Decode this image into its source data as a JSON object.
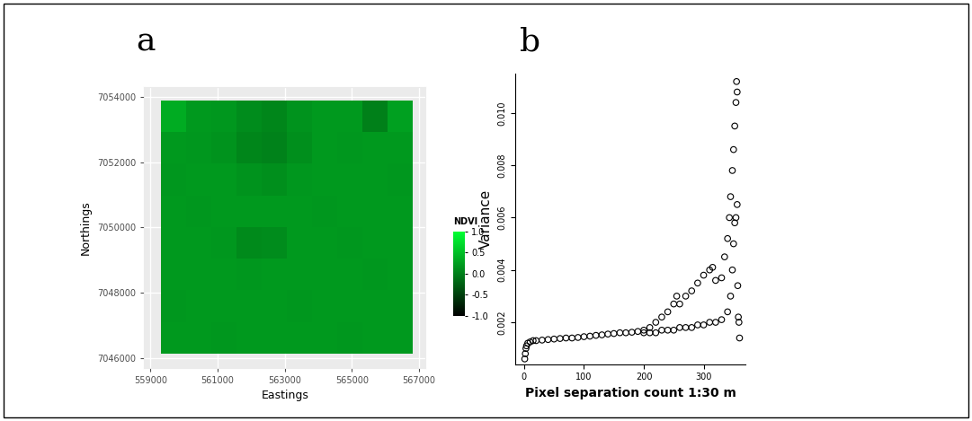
{
  "chart_data": [
    {
      "type": "heatmap",
      "title": "a",
      "x_label": "Eastings",
      "y_label": "Northings",
      "xlim": [
        558800,
        567200
      ],
      "ylim": [
        7045700,
        7054300
      ],
      "xticks": [
        559000,
        561000,
        563000,
        565000,
        567000
      ],
      "yticks": [
        7046000,
        7048000,
        7050000,
        7052000,
        7054000
      ],
      "grid": true,
      "x_extent": [
        559300,
        566800
      ],
      "y_extent": [
        7046150,
        7053900
      ],
      "cells": [
        [
          0.35,
          0.2,
          0.18,
          0.1,
          0.05,
          0.15,
          0.2,
          0.2,
          0.0,
          0.25
        ],
        [
          0.2,
          0.18,
          0.15,
          0.05,
          0.02,
          0.12,
          0.2,
          0.18,
          0.2,
          0.2
        ],
        [
          0.18,
          0.2,
          0.2,
          0.15,
          0.12,
          0.18,
          0.2,
          0.2,
          0.2,
          0.18
        ],
        [
          0.2,
          0.18,
          0.2,
          0.2,
          0.2,
          0.2,
          0.18,
          0.2,
          0.2,
          0.2
        ],
        [
          0.2,
          0.2,
          0.18,
          0.08,
          0.1,
          0.2,
          0.2,
          0.18,
          0.2,
          0.2
        ],
        [
          0.2,
          0.2,
          0.2,
          0.18,
          0.2,
          0.2,
          0.2,
          0.2,
          0.18,
          0.2
        ],
        [
          0.18,
          0.2,
          0.2,
          0.2,
          0.2,
          0.18,
          0.2,
          0.2,
          0.2,
          0.2
        ],
        [
          0.2,
          0.2,
          0.18,
          0.2,
          0.2,
          0.2,
          0.2,
          0.18,
          0.2,
          0.2
        ]
      ],
      "colorbar": {
        "label": "NDVI",
        "range": [
          -1.0,
          1.0
        ],
        "colors": [
          "#000000",
          "#00ff33"
        ],
        "ticks": [
          {
            "value": -1.0,
            "label": "-1.0"
          },
          {
            "value": -0.5,
            "label": "-0.5"
          },
          {
            "value": 0.0,
            "label": "0.0"
          },
          {
            "value": 0.5,
            "label": "0.5"
          },
          {
            "value": 1.0,
            "label": "1.0"
          }
        ]
      }
    },
    {
      "type": "scatter",
      "title": "b",
      "x_label": "Pixel separation count 1:30 m",
      "y_label": "Variance",
      "xlim": [
        -15,
        370
      ],
      "ylim": [
        0.0004,
        0.0115
      ],
      "xticks": [
        0,
        100,
        200,
        300
      ],
      "yticks": [
        {
          "value": 0.002,
          "label": "0.002"
        },
        {
          "value": 0.004,
          "label": "0.004"
        },
        {
          "value": 0.006,
          "label": "0.006"
        },
        {
          "value": 0.008,
          "label": "0.008"
        },
        {
          "value": 0.01,
          "label": "0.010"
        }
      ],
      "grid": false,
      "color": "#000000",
      "marker": "open_circle",
      "x": [
        1,
        2,
        3,
        4,
        6,
        10,
        15,
        20,
        30,
        40,
        50,
        60,
        70,
        80,
        90,
        100,
        110,
        120,
        130,
        140,
        150,
        160,
        170,
        180,
        190,
        200,
        200,
        210,
        210,
        220,
        220,
        230,
        230,
        240,
        240,
        250,
        250,
        255,
        260,
        260,
        270,
        270,
        280,
        280,
        290,
        290,
        300,
        300,
        310,
        310,
        315,
        320,
        320,
        330,
        330,
        335,
        340,
        340,
        343,
        345,
        345,
        348,
        348,
        350,
        350,
        352,
        352,
        354,
        354,
        355,
        356,
        356,
        357,
        358,
        359,
        360
      ],
      "values": [
        0.0006,
        0.0008,
        0.001,
        0.0011,
        0.0012,
        0.00125,
        0.0013,
        0.0013,
        0.00132,
        0.00134,
        0.00136,
        0.00138,
        0.0014,
        0.0014,
        0.00142,
        0.00145,
        0.00147,
        0.0015,
        0.00152,
        0.00155,
        0.00157,
        0.0016,
        0.0016,
        0.00162,
        0.00165,
        0.0017,
        0.0016,
        0.0018,
        0.0016,
        0.002,
        0.0016,
        0.0022,
        0.0017,
        0.0024,
        0.0017,
        0.0027,
        0.0017,
        0.003,
        0.0027,
        0.0018,
        0.003,
        0.0018,
        0.0032,
        0.0018,
        0.0035,
        0.0019,
        0.0038,
        0.0019,
        0.004,
        0.002,
        0.0041,
        0.0036,
        0.002,
        0.0037,
        0.0021,
        0.0045,
        0.0052,
        0.0024,
        0.006,
        0.0068,
        0.003,
        0.0078,
        0.004,
        0.0086,
        0.005,
        0.0095,
        0.0058,
        0.0104,
        0.006,
        0.0112,
        0.0108,
        0.0065,
        0.0034,
        0.0022,
        0.002,
        0.0014
      ]
    }
  ]
}
